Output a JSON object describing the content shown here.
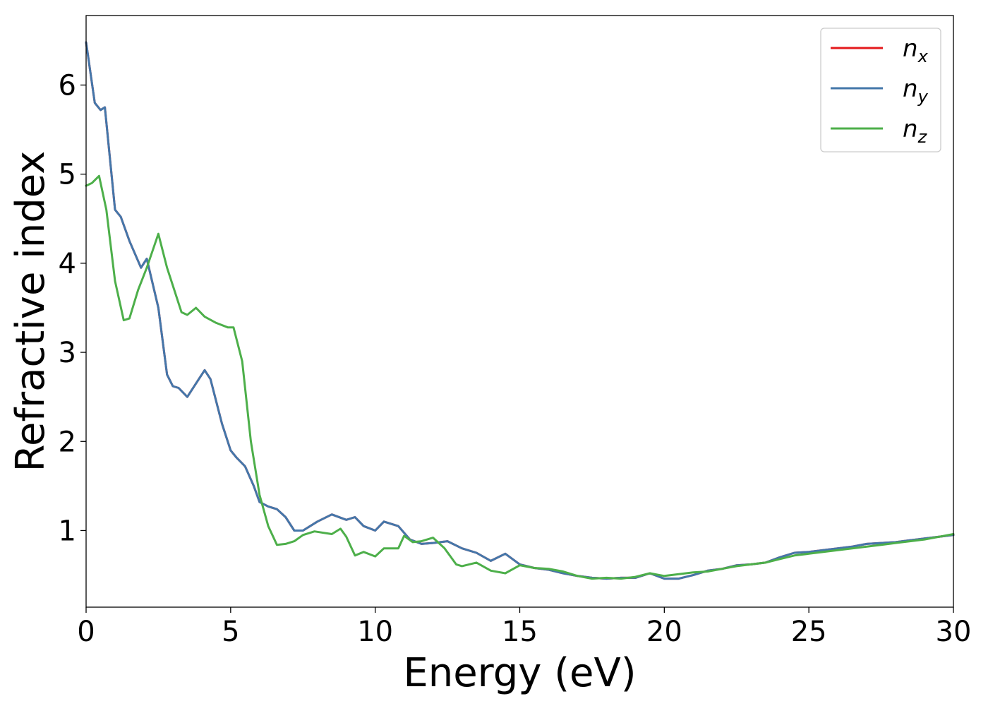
{
  "chart_data": {
    "type": "line",
    "xlabel": "Energy (eV)",
    "ylabel": "Refractive index",
    "xlim": [
      0,
      30
    ],
    "ylim": [
      0.14,
      6.78
    ],
    "xticks": [
      0,
      5,
      10,
      15,
      20,
      25,
      30
    ],
    "xtick_labels": [
      "0",
      "5",
      "10",
      "15",
      "20",
      "25",
      "30"
    ],
    "yticks": [
      1,
      2,
      3,
      4,
      5,
      6
    ],
    "ytick_labels": [
      "1",
      "2",
      "3",
      "4",
      "5",
      "6"
    ],
    "grid": false,
    "legend_position": "top-right",
    "series": [
      {
        "name": "n",
        "subscript": "x",
        "color": "#e41a1c",
        "x": [
          0,
          0.3,
          0.5,
          0.65,
          1.0,
          1.2,
          1.5,
          1.9,
          2.1,
          2.5,
          2.8,
          3.0,
          3.2,
          3.5,
          3.8,
          4.1,
          4.3,
          4.7,
          5.0,
          5.2,
          5.5,
          5.8,
          6.0,
          6.3,
          6.6,
          6.9,
          7.2,
          7.5,
          8.0,
          8.5,
          9.0,
          9.3,
          9.6,
          10.0,
          10.3,
          10.8,
          11.2,
          11.6,
          12.0,
          12.5,
          13.0,
          13.5,
          14.0,
          14.5,
          15.0,
          15.5,
          16.0,
          16.5,
          17.0,
          17.5,
          18.0,
          18.5,
          19.0,
          19.5,
          20.0,
          20.5,
          21.0,
          21.5,
          22.0,
          22.5,
          23.0,
          23.5,
          24.0,
          24.5,
          25.0,
          25.5,
          26.0,
          26.5,
          27.0,
          27.5,
          28.0,
          28.5,
          29.0,
          29.5,
          30.0
        ],
        "y": [
          6.48,
          5.8,
          5.72,
          5.75,
          4.6,
          4.52,
          4.25,
          3.95,
          4.05,
          3.5,
          2.75,
          2.62,
          2.6,
          2.5,
          2.65,
          2.8,
          2.7,
          2.2,
          1.9,
          1.82,
          1.72,
          1.5,
          1.32,
          1.27,
          1.24,
          1.15,
          1.0,
          1.0,
          1.1,
          1.18,
          1.12,
          1.15,
          1.05,
          1.0,
          1.1,
          1.05,
          0.9,
          0.85,
          0.86,
          0.88,
          0.8,
          0.75,
          0.66,
          0.74,
          0.62,
          0.58,
          0.56,
          0.52,
          0.49,
          0.47,
          0.46,
          0.47,
          0.47,
          0.52,
          0.46,
          0.46,
          0.5,
          0.55,
          0.57,
          0.61,
          0.62,
          0.64,
          0.7,
          0.75,
          0.76,
          0.78,
          0.8,
          0.82,
          0.85,
          0.86,
          0.87,
          0.89,
          0.91,
          0.93,
          0.95
        ]
      },
      {
        "name": "n",
        "subscript": "y",
        "color": "#4477aa",
        "x": [
          0,
          0.3,
          0.5,
          0.65,
          1.0,
          1.2,
          1.5,
          1.9,
          2.1,
          2.5,
          2.8,
          3.0,
          3.2,
          3.5,
          3.8,
          4.1,
          4.3,
          4.7,
          5.0,
          5.2,
          5.5,
          5.8,
          6.0,
          6.3,
          6.6,
          6.9,
          7.2,
          7.5,
          8.0,
          8.5,
          9.0,
          9.3,
          9.6,
          10.0,
          10.3,
          10.8,
          11.2,
          11.6,
          12.0,
          12.5,
          13.0,
          13.5,
          14.0,
          14.5,
          15.0,
          15.5,
          16.0,
          16.5,
          17.0,
          17.5,
          18.0,
          18.5,
          19.0,
          19.5,
          20.0,
          20.5,
          21.0,
          21.5,
          22.0,
          22.5,
          23.0,
          23.5,
          24.0,
          24.5,
          25.0,
          25.5,
          26.0,
          26.5,
          27.0,
          27.5,
          28.0,
          28.5,
          29.0,
          29.5,
          30.0
        ],
        "y": [
          6.48,
          5.8,
          5.72,
          5.75,
          4.6,
          4.52,
          4.25,
          3.95,
          4.05,
          3.5,
          2.75,
          2.62,
          2.6,
          2.5,
          2.65,
          2.8,
          2.7,
          2.2,
          1.9,
          1.82,
          1.72,
          1.5,
          1.32,
          1.27,
          1.24,
          1.15,
          1.0,
          1.0,
          1.1,
          1.18,
          1.12,
          1.15,
          1.05,
          1.0,
          1.1,
          1.05,
          0.9,
          0.85,
          0.86,
          0.88,
          0.8,
          0.75,
          0.66,
          0.74,
          0.62,
          0.58,
          0.56,
          0.52,
          0.49,
          0.47,
          0.46,
          0.47,
          0.47,
          0.52,
          0.46,
          0.46,
          0.5,
          0.55,
          0.57,
          0.61,
          0.62,
          0.64,
          0.7,
          0.75,
          0.76,
          0.78,
          0.8,
          0.82,
          0.85,
          0.86,
          0.87,
          0.89,
          0.91,
          0.93,
          0.95
        ]
      },
      {
        "name": "n",
        "subscript": "z",
        "color": "#4daf4a",
        "x": [
          0,
          0.2,
          0.45,
          0.7,
          1.0,
          1.3,
          1.5,
          1.8,
          2.1,
          2.5,
          2.8,
          3.0,
          3.3,
          3.5,
          3.8,
          4.1,
          4.5,
          4.9,
          5.1,
          5.4,
          5.7,
          6.0,
          6.3,
          6.6,
          6.9,
          7.2,
          7.5,
          7.9,
          8.5,
          8.8,
          9.0,
          9.3,
          9.6,
          10.0,
          10.3,
          10.8,
          11.0,
          11.3,
          11.6,
          12.0,
          12.4,
          12.8,
          13.0,
          13.5,
          14.0,
          14.5,
          15.0,
          15.5,
          16.0,
          16.5,
          17.0,
          17.5,
          18.0,
          18.5,
          19.0,
          19.5,
          20.0,
          20.5,
          21.0,
          21.5,
          22.0,
          22.5,
          23.0,
          23.5,
          24.0,
          24.5,
          25.0,
          25.5,
          26.0,
          26.5,
          27.0,
          27.5,
          28.0,
          28.5,
          29.0,
          29.5,
          30.0
        ],
        "y": [
          4.87,
          4.9,
          4.98,
          4.6,
          3.8,
          3.36,
          3.38,
          3.7,
          3.95,
          4.33,
          3.95,
          3.75,
          3.45,
          3.42,
          3.5,
          3.4,
          3.33,
          3.28,
          3.28,
          2.9,
          2.0,
          1.4,
          1.05,
          0.84,
          0.85,
          0.88,
          0.95,
          0.99,
          0.96,
          1.02,
          0.93,
          0.72,
          0.76,
          0.71,
          0.8,
          0.8,
          0.94,
          0.87,
          0.88,
          0.92,
          0.8,
          0.62,
          0.6,
          0.64,
          0.55,
          0.52,
          0.61,
          0.58,
          0.57,
          0.54,
          0.49,
          0.46,
          0.47,
          0.46,
          0.48,
          0.52,
          0.49,
          0.51,
          0.53,
          0.54,
          0.57,
          0.6,
          0.62,
          0.64,
          0.68,
          0.72,
          0.74,
          0.76,
          0.78,
          0.8,
          0.82,
          0.84,
          0.86,
          0.88,
          0.9,
          0.93,
          0.96
        ]
      }
    ]
  }
}
